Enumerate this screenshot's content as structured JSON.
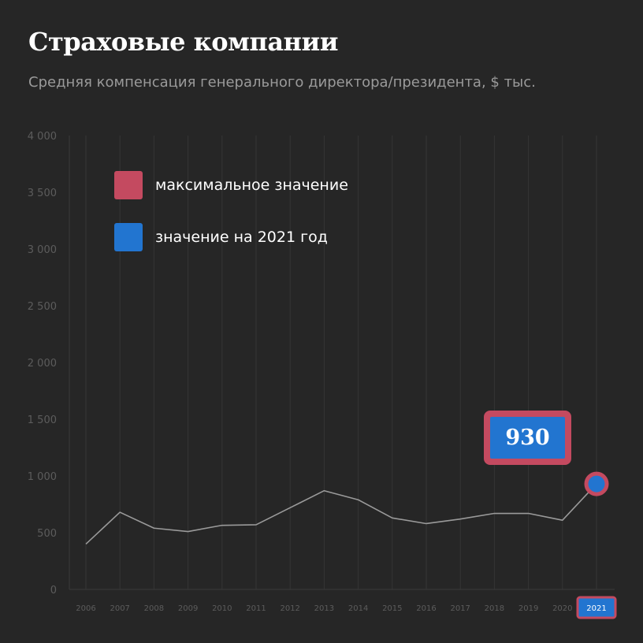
{
  "header": {
    "title": "Страховые компании",
    "subtitle": "Средняя компенсация генерального директора/президента, $ тыс."
  },
  "legend": [
    {
      "label": "максимальное значение",
      "color": "#c44a60"
    },
    {
      "label": "значение на 2021 год",
      "color": "#2275d0"
    }
  ],
  "callout": {
    "value": "930"
  },
  "colors": {
    "background": "#262626",
    "line": "#9a9a9a",
    "grid": "#353535",
    "tick_text": "#5c5c5c",
    "accent_red": "#c44a60",
    "accent_blue": "#2275d0"
  },
  "chart_data": {
    "type": "line",
    "title": "Страховые компании",
    "subtitle": "Средняя компенсация генерального директора/президента, $ тыс.",
    "x": [
      "2006",
      "2007",
      "2008",
      "2009",
      "2010",
      "2011",
      "2012",
      "2013",
      "2014",
      "2015",
      "2016",
      "2017",
      "2018",
      "2019",
      "2020",
      "2021"
    ],
    "series": [
      {
        "values": [
          400,
          680,
          540,
          510,
          565,
          570,
          720,
          870,
          790,
          630,
          580,
          620,
          670,
          670,
          610,
          930
        ]
      }
    ],
    "ylim": [
      0,
      4000
    ],
    "yticks": [
      0,
      500,
      1000,
      1500,
      2000,
      2500,
      3000,
      3500,
      4000
    ],
    "ytick_labels": [
      "0",
      "500",
      "1 000",
      "1 500",
      "2 000",
      "2 500",
      "3 000",
      "3 500",
      "4 000"
    ],
    "grid": "vertical",
    "legend_position": "top-left",
    "highlight": {
      "x": "2021",
      "value": 930
    }
  }
}
